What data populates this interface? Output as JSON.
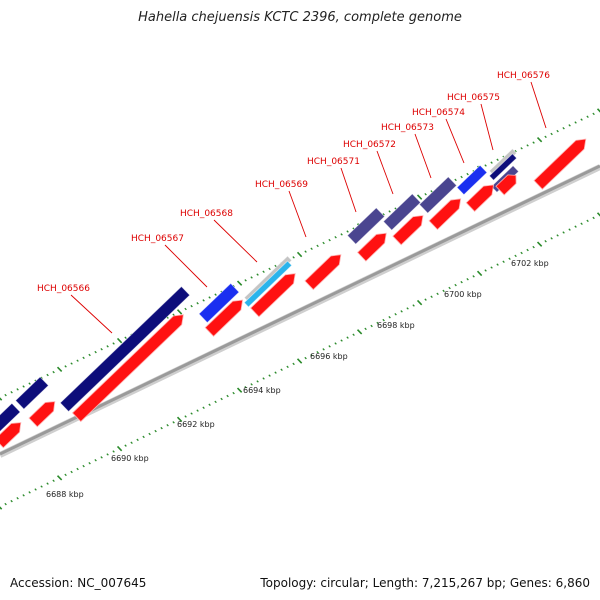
{
  "title": "Hahella chejuensis KCTC 2396, complete genome",
  "footer": {
    "accession": "Accession: NC_007645",
    "summary": "Topology: circular; Length: 7,215,267 bp; Genes: 6,860"
  },
  "colors": {
    "backbone": "#9a9a9a",
    "cds": "#ff1111",
    "gene_label": "#dd0000",
    "tick": "#2a8a2a",
    "navy": "#0d0d7a",
    "blue": "#1a2ff0",
    "slate": "#4a4590",
    "sky": "#2ab4ec",
    "gray": "#c4c4c4"
  },
  "kbp_labels": [
    "6688 kbp",
    "6690 kbp",
    "6692 kbp",
    "6694 kbp",
    "6696 kbp",
    "6698 kbp",
    "6700 kbp",
    "6702 kbp"
  ],
  "genes": [
    {
      "name": "HCH_06566"
    },
    {
      "name": "HCH_06567"
    },
    {
      "name": "HCH_06568"
    },
    {
      "name": "HCH_06569"
    },
    {
      "name": "HCH_06571"
    },
    {
      "name": "HCH_06572"
    },
    {
      "name": "HCH_06573"
    },
    {
      "name": "HCH_06574"
    },
    {
      "name": "HCH_06575"
    },
    {
      "name": "HCH_06576"
    }
  ]
}
